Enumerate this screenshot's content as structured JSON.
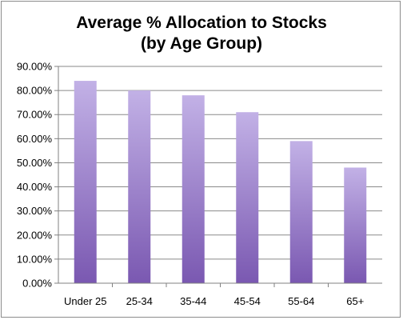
{
  "chart_data": {
    "type": "bar",
    "title_lines": [
      "Average % Allocation to Stocks",
      "(by Age Group)"
    ],
    "categories": [
      "Under 25",
      "25-34",
      "35-44",
      "45-54",
      "55-64",
      "65+"
    ],
    "values": [
      84,
      80,
      78,
      71,
      59,
      48
    ],
    "y_ticks": [
      "0.00%",
      "10.00%",
      "20.00%",
      "30.00%",
      "40.00%",
      "50.00%",
      "60.00%",
      "70.00%",
      "80.00%",
      "90.00%"
    ],
    "ylim": [
      0,
      90
    ],
    "grid": true,
    "legend": "none",
    "colors": {
      "bar_top": "#c2b1e6",
      "bar_bottom": "#7a58b1",
      "grid": "#8a8a8a",
      "axis": "#808080"
    }
  }
}
